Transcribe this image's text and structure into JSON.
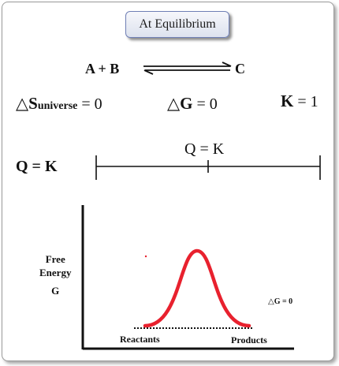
{
  "title": "At Equilibrium",
  "reaction": {
    "left": "A +  B",
    "right": "C"
  },
  "conditions": {
    "ds_symbol": "△S",
    "ds_sub": "universe",
    "ds_rest": " = 0",
    "dg_symbol": "△G",
    "dg_rest": " = 0",
    "k_symbol": "K",
    "k_rest": " = 1"
  },
  "q_scale": {
    "left_label": "Q  =  K",
    "marker_label": "Q = K",
    "marker_fraction": 0.5
  },
  "energy_diagram": {
    "y_label_line1": "Free",
    "y_label_line2": "Energy",
    "y_label_line3": "G",
    "reactants_label": "Reactants",
    "products_label": "Products",
    "delta_g_label": "△G = 0",
    "curve_color": "#e8212e"
  }
}
